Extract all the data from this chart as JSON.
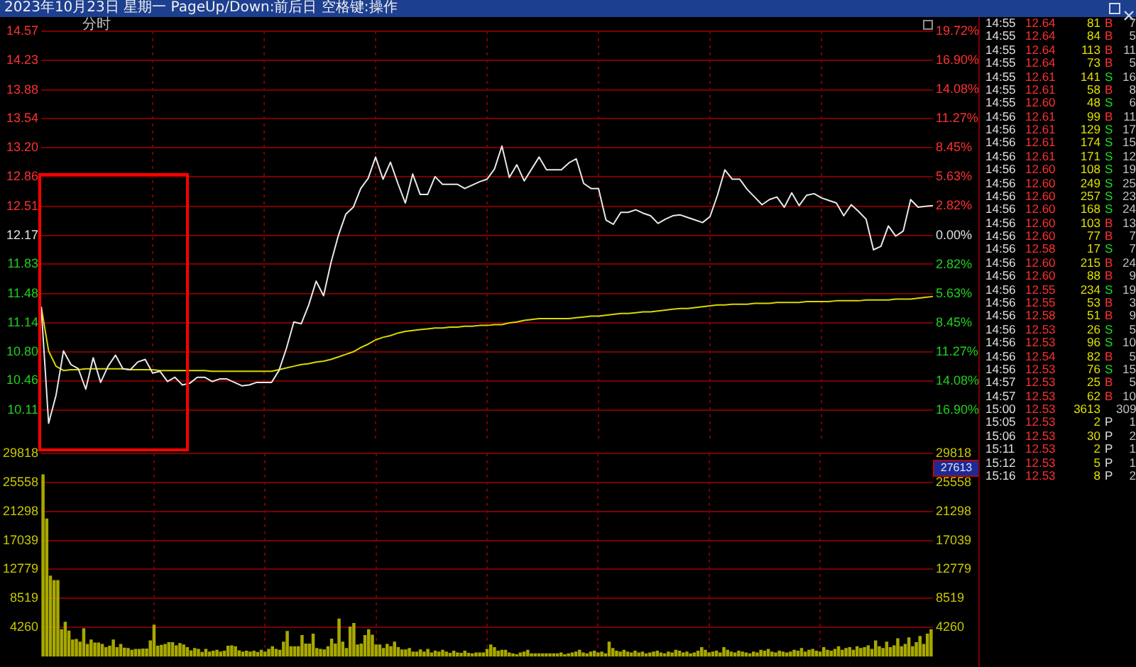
{
  "chart_data": [
    {
      "type": "line",
      "title": "2023年10月23日 星期一 PageUp/Down:前后日 空格键:操作",
      "subtitle": "分时",
      "categories": [
        null,
        null,
        null,
        null,
        null,
        null,
        null,
        null,
        null,
        null,
        null,
        null,
        null,
        null,
        null,
        null,
        null,
        null,
        null,
        null,
        null,
        null,
        null,
        null,
        null,
        null,
        null,
        null,
        null,
        null,
        null,
        null,
        null,
        null,
        null,
        null,
        null,
        null,
        null,
        null,
        null,
        null,
        null,
        null,
        null,
        null,
        null,
        null,
        null,
        null,
        null,
        null,
        null,
        null,
        null,
        null,
        null,
        null,
        null,
        null,
        null,
        null,
        null,
        null,
        null,
        null,
        null,
        null,
        null,
        null,
        null,
        null,
        null,
        null,
        null,
        null,
        null,
        null,
        null,
        null,
        null,
        null,
        null,
        null,
        null,
        null,
        null,
        null,
        null,
        null,
        null,
        null,
        null,
        null,
        null,
        null,
        null,
        null,
        null,
        null,
        null,
        null,
        null,
        null,
        null,
        null,
        null,
        null,
        null,
        null,
        null,
        null,
        null,
        null,
        null,
        null,
        null,
        null,
        null,
        null,
        null
      ],
      "series": [
        {
          "color": "#e8e8e8",
          "values": [
            11.33,
            9.96,
            10.29,
            10.81,
            10.65,
            10.6,
            10.36,
            10.73,
            10.44,
            10.63,
            10.76,
            10.6,
            10.59,
            10.68,
            10.71,
            10.55,
            10.57,
            10.45,
            10.5,
            10.41,
            10.43,
            10.5,
            10.5,
            10.45,
            10.48,
            10.48,
            10.44,
            10.4,
            10.41,
            10.44,
            10.44,
            10.44,
            10.58,
            10.84,
            11.15,
            11.13,
            11.35,
            11.63,
            11.46,
            11.85,
            12.17,
            12.42,
            12.5,
            12.72,
            12.84,
            13.09,
            12.83,
            13.03,
            12.78,
            12.55,
            12.89,
            12.65,
            12.65,
            12.86,
            12.77,
            12.77,
            12.77,
            12.72,
            12.76,
            12.8,
            12.83,
            12.95,
            13.22,
            12.85,
            13.0,
            12.81,
            12.95,
            13.09,
            12.94,
            12.94,
            12.94,
            13.02,
            13.07,
            12.78,
            12.72,
            12.72,
            12.35,
            12.3,
            12.44,
            12.44,
            12.47,
            12.43,
            12.4,
            12.31,
            12.36,
            12.4,
            12.41,
            12.38,
            12.35,
            12.32,
            12.39,
            12.64,
            12.94,
            12.83,
            12.83,
            12.71,
            12.62,
            12.53,
            12.59,
            12.62,
            12.5,
            12.67,
            12.52,
            12.64,
            12.66,
            12.61,
            12.58,
            12.55,
            12.4,
            12.53,
            12.45,
            12.36,
            12.0,
            12.04,
            12.28,
            12.16,
            12.22,
            12.59,
            12.5,
            12.51,
            12.52
          ]
        },
        {
          "color": "#d8d800",
          "values": [
            11.33,
            10.81,
            10.63,
            10.58,
            10.59,
            10.59,
            10.6,
            10.6,
            10.6,
            10.6,
            10.6,
            10.6,
            10.59,
            10.59,
            10.59,
            10.59,
            10.58,
            10.58,
            10.58,
            10.58,
            10.58,
            10.58,
            10.58,
            10.57,
            10.57,
            10.57,
            10.57,
            10.57,
            10.57,
            10.57,
            10.57,
            10.57,
            10.59,
            10.61,
            10.63,
            10.65,
            10.66,
            10.68,
            10.69,
            10.71,
            10.74,
            10.77,
            10.8,
            10.85,
            10.89,
            10.94,
            10.97,
            10.99,
            11.02,
            11.04,
            11.05,
            11.06,
            11.07,
            11.08,
            11.08,
            11.09,
            11.09,
            11.1,
            11.1,
            11.11,
            11.11,
            11.12,
            11.12,
            11.14,
            11.15,
            11.17,
            11.18,
            11.19,
            11.19,
            11.19,
            11.19,
            11.19,
            11.2,
            11.21,
            11.22,
            11.22,
            11.23,
            11.24,
            11.25,
            11.25,
            11.26,
            11.27,
            11.27,
            11.28,
            11.29,
            11.3,
            11.31,
            11.31,
            11.32,
            11.33,
            11.34,
            11.35,
            11.35,
            11.36,
            11.36,
            11.36,
            11.37,
            11.37,
            11.37,
            11.38,
            11.38,
            11.38,
            11.38,
            11.39,
            11.39,
            11.39,
            11.39,
            11.4,
            11.4,
            11.4,
            11.4,
            11.41,
            11.41,
            11.41,
            11.41,
            11.42,
            11.42,
            11.42,
            11.43,
            11.44,
            11.45
          ]
        }
      ],
      "ylim": [
        9.77,
        14.57
      ],
      "yticks": [
        14.57,
        14.23,
        13.88,
        13.54,
        {
          "value": 13.2,
          "label": "13.20"
        },
        12.86,
        12.51,
        12.17,
        11.83,
        11.48,
        11.14,
        {
          "value": 10.8,
          "label": "10.80"
        },
        10.46,
        10.11
      ],
      "y2lim": [
        -19.72,
        19.72
      ],
      "y2ticks": [
        {
          "value": 19.72,
          "label": "19.72%"
        },
        {
          "value": 16.9,
          "label": "16.90%"
        },
        {
          "value": 14.08,
          "label": "14.08%"
        },
        {
          "value": 11.27,
          "label": "11.27%"
        },
        {
          "value": 8.45,
          "label": "8.45%"
        },
        {
          "value": 5.63,
          "label": "5.63%"
        },
        {
          "value": 2.82,
          "label": "2.82%"
        },
        {
          "value": 0,
          "label": "0.00%"
        },
        {
          "value": -2.82,
          "label": "2.82%"
        },
        {
          "value": -5.63,
          "label": "5.63%"
        },
        {
          "value": -8.45,
          "label": "8.45%"
        },
        {
          "value": -11.27,
          "label": "11.27%"
        },
        {
          "value": -14.08,
          "label": "14.08%"
        },
        {
          "value": -16.9,
          "label": "16.90%"
        }
      ],
      "grid": true,
      "tick_labels": "y"
    },
    {
      "type": "bar",
      "color": "#a8a800",
      "categories": [
        null,
        null,
        null,
        null,
        null,
        null,
        null,
        null,
        null,
        null,
        null,
        null,
        null,
        null,
        null,
        null,
        null,
        null,
        null,
        null,
        null,
        null,
        null,
        null,
        null,
        null,
        null,
        null,
        null,
        null,
        null,
        null,
        null,
        null,
        null,
        null,
        null,
        null,
        null,
        null,
        null,
        null,
        null,
        null,
        null,
        null,
        null,
        null,
        null,
        null,
        null,
        null,
        null,
        null,
        null,
        null,
        null,
        null,
        null,
        null,
        null,
        null,
        null,
        null,
        null,
        null,
        null,
        null,
        null,
        null,
        null,
        null,
        null,
        null,
        null,
        null,
        null,
        null,
        null,
        null,
        null,
        null,
        null,
        null,
        null,
        null,
        null,
        null,
        null,
        null,
        null,
        null,
        null,
        null,
        null,
        null,
        null,
        null,
        null,
        null,
        null,
        null,
        null,
        null,
        null,
        null,
        null,
        null,
        null,
        null,
        null,
        null,
        null,
        null,
        null,
        null,
        null,
        null,
        null,
        null,
        null,
        null,
        null,
        null,
        null,
        null,
        null,
        null,
        null,
        null,
        null,
        null,
        null,
        null,
        null,
        null,
        null,
        null,
        null,
        null,
        null,
        null,
        null,
        null,
        null,
        null,
        null,
        null,
        null,
        null,
        null,
        null,
        null,
        null,
        null,
        null,
        null,
        null,
        null,
        null,
        null,
        null,
        null,
        null,
        null,
        null,
        null,
        null,
        null,
        null,
        null,
        null,
        null,
        null,
        null,
        null,
        null,
        null,
        null,
        null,
        null,
        null,
        null,
        null,
        null,
        null,
        null,
        null,
        null,
        null,
        null,
        null,
        null,
        null,
        null,
        null,
        null,
        null,
        null,
        null,
        null,
        null,
        null,
        null,
        null,
        null,
        null,
        null,
        null,
        null,
        null,
        null,
        null,
        null,
        null,
        null,
        null,
        null,
        null,
        null,
        null,
        null,
        null,
        null,
        null,
        null,
        null,
        null,
        null,
        null,
        null,
        null,
        null,
        null,
        null,
        null,
        null,
        null,
        null,
        null,
        null
      ],
      "values": [
        26660,
        20170,
        11790,
        11140,
        11140,
        3930,
        5040,
        3730,
        2420,
        2490,
        2100,
        4060,
        1770,
        2420,
        1970,
        1970,
        1770,
        1310,
        1510,
        2420,
        1310,
        1770,
        1240,
        1180,
        920,
        1050,
        1050,
        1110,
        1110,
        2290,
        4590,
        1510,
        1640,
        1770,
        2030,
        2030,
        1570,
        1900,
        1700,
        1310,
        850,
        1180,
        1050,
        590,
        1050,
        660,
        790,
        920,
        660,
        790,
        1510,
        1570,
        1440,
        850,
        660,
        790,
        660,
        790,
        590,
        920,
        660,
        1050,
        1440,
        1050,
        920,
        2100,
        3670,
        1440,
        1440,
        1440,
        3080,
        1830,
        1830,
        3280,
        1180,
        1050,
        980,
        1440,
        2550,
        1830,
        5500,
        2100,
        1180,
        4320,
        4850,
        1700,
        1830,
        3080,
        3930,
        3140,
        1700,
        1700,
        1180,
        1770,
        1440,
        2100,
        1310,
        980,
        980,
        1180,
        660,
        660,
        980,
        660,
        1050,
        520,
        790,
        660,
        920,
        660,
        460,
        790,
        520,
        460,
        790,
        460,
        390,
        520,
        520,
        520,
        1050,
        1700,
        1310,
        790,
        920,
        920,
        520,
        390,
        260,
        520,
        660,
        920,
        390,
        390,
        390,
        390,
        390,
        390,
        390,
        390,
        520,
        260,
        390,
        520,
        660,
        920,
        520,
        390,
        660,
        790,
        520,
        660,
        390,
        2100,
        1180,
        790,
        660,
        920,
        660,
        520,
        790,
        520,
        660,
        390,
        520,
        660,
        790,
        520,
        390,
        660,
        520,
        920,
        790,
        520,
        660,
        390,
        520,
        790,
        1310,
        920,
        520,
        660,
        790,
        520,
        1310,
        920,
        660,
        520,
        790,
        660,
        520,
        390,
        660,
        520,
        920,
        790,
        1050,
        660,
        520,
        790,
        660,
        520,
        660,
        920,
        790,
        1180,
        660,
        920,
        1050,
        790,
        660,
        1310,
        920,
        790,
        1050,
        1440,
        920,
        1180,
        1310,
        920,
        1440,
        1180,
        1310,
        1570,
        1050,
        2290,
        1440,
        1180,
        2100,
        1310,
        1570,
        2620,
        1440,
        1770,
        2750,
        1440,
        2030,
        2950,
        1770,
        3280,
        3930
      ],
      "ylim": [
        0,
        29818
      ],
      "yticks": [
        4260,
        8519,
        12779,
        17039,
        21298,
        25558,
        29818
      ],
      "y2lim": [
        0,
        29818
      ],
      "y2ticks": [
        4260,
        8519,
        12779,
        17039,
        21298,
        25558,
        29818
      ],
      "annotations": [
        "27613"
      ],
      "grid": true,
      "tick_labels": "y"
    },
    {
      "type": "other",
      "annotations": [
        "14:55\t12.64\t81\tB\t7",
        "14:55\t12.64\t84\tB\t5",
        "14:55\t12.64\t113\tB\t11",
        "14:55\t12.64\t73\tB\t5",
        "14:55\t12.61\t141\tS\t16",
        "14:55\t12.61\t58\tB\t8",
        "14:55\t12.60\t48\tS\t6",
        "14:56\t12.61\t99\tB\t11",
        "14:56\t12.61\t129\tS\t17",
        "14:56\t12.61\t174\tS\t15",
        "14:56\t12.61\t171\tS\t12",
        "14:56\t12.60\t108\tS\t19",
        "14:56\t12.60\t249\tS\t25",
        "14:56\t12.60\t257\tS\t23",
        "14:56\t12.60\t168\tS\t24",
        "14:56\t12.60\t103\tB\t13",
        "14:56\t12.60\t77\tB\t7",
        "14:56\t12.58\t17\tS\t7",
        "14:56\t12.60\t215\tB\t24",
        "14:56\t12.60\t88\tB\t9",
        "14:56\t12.55\t234\tS\t19",
        "14:56\t12.55\t53\tB\t3",
        "14:56\t12.58\t51\tB\t9",
        "14:56\t12.53\t26\tS\t5",
        "14:56\t12.53\t96\tS\t10",
        "14:56\t12.54\t82\tB\t5",
        "14:56\t12.53\t76\tS\t15",
        "14:57\t12.53\t25\tB\t5",
        "14:57\t12.53\t62\tB\t10",
        "15:00\t12.53\t3613\t\t309",
        "15:05\t12.53\t2\tP\t1",
        "15:06\t12.53\t30\tP\t2",
        "15:11\t12.53\t2\tP\t1",
        "15:12\t12.53\t5\tP\t1",
        "15:16\t12.53\t8\tP\t2"
      ],
      "colors": [
        "#ff3030",
        "#ff3030",
        "#ff3030",
        "#ff3030",
        "#20e020",
        "#ff3030",
        "#20e020",
        "#ff3030",
        "#20e020",
        "#20e020",
        "#20e020",
        "#20e020",
        "#20e020",
        "#20e020",
        "#20e020",
        "#ff3030",
        "#ff3030",
        "#20e020",
        "#ff3030",
        "#ff3030",
        "#20e020",
        "#ff3030",
        "#ff3030",
        "#20e020",
        "#20e020",
        "#ff3030",
        "#20e020",
        "#ff3030",
        "#ff3030",
        "#e040e0",
        "#e0e0e0",
        "#e0e0e0",
        "#e0e0e0",
        "#e0e0e0",
        "#e0e0e0"
      ]
    }
  ]
}
